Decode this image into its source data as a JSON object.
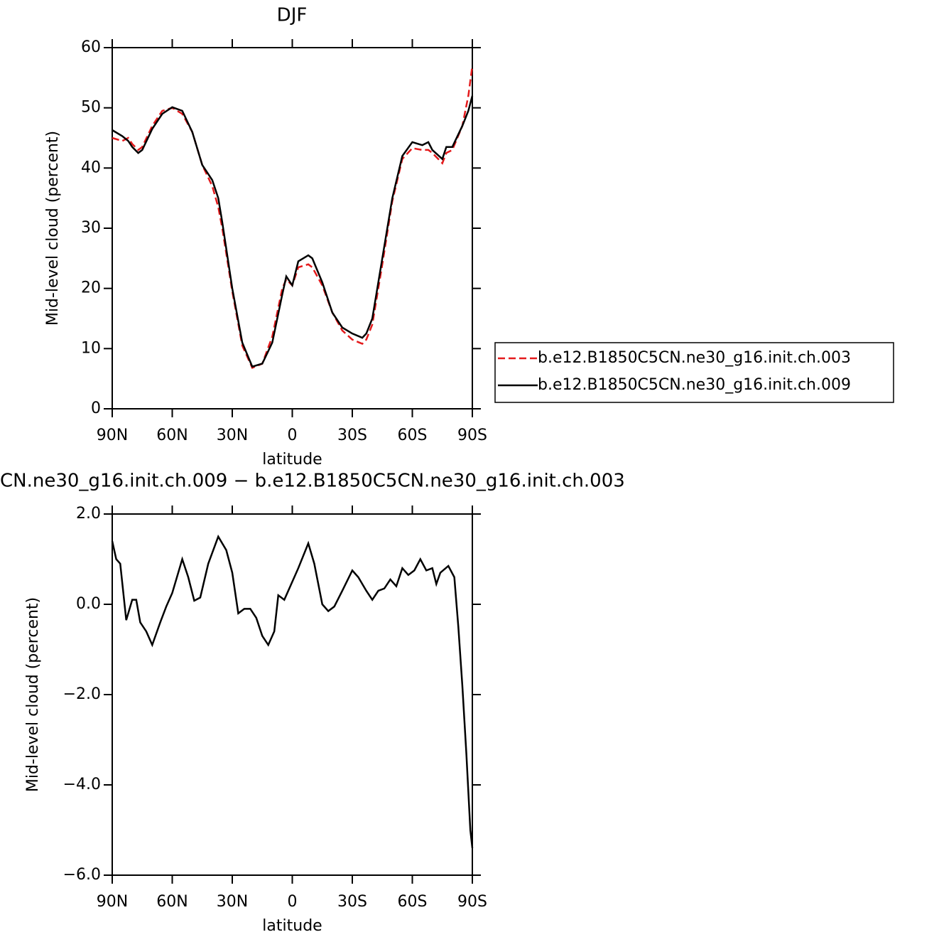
{
  "chart_data": [
    {
      "type": "line",
      "title": "DJF",
      "x_label": "latitude",
      "y_label": "Mid-level cloud (percent)",
      "x": [
        90,
        85,
        82,
        80,
        77,
        75,
        70,
        65,
        60,
        55,
        50,
        45,
        40,
        37,
        35,
        30,
        25,
        20,
        15,
        10,
        5,
        3,
        0,
        -3,
        -8,
        -10,
        -15,
        -20,
        -25,
        -30,
        -35,
        -37,
        -40,
        -45,
        -50,
        -55,
        -60,
        -65,
        -68,
        -70,
        -75,
        -77,
        -80,
        -85,
        -88,
        -90
      ],
      "series": [
        {
          "name": "b.e12.B1850C5CN.ne30_g16.init.ch.003",
          "color": "#e41a1c",
          "dash": true,
          "values": [
            45,
            44.5,
            45,
            44,
            43,
            43.5,
            47,
            49.5,
            50,
            49,
            46,
            40.5,
            37,
            33.5,
            30,
            19.5,
            10.5,
            6.8,
            7.5,
            12,
            20,
            21.5,
            20.5,
            23.5,
            24,
            23.5,
            20.5,
            16,
            13,
            11.5,
            10.8,
            11.5,
            14,
            24,
            34.5,
            41.5,
            43.3,
            43,
            43,
            42.5,
            40.8,
            42.5,
            43,
            47,
            52,
            57
          ]
        },
        {
          "name": "b.e12.B1850C5CN.ne30_g16.init.ch.009",
          "color": "#000000",
          "dash": false,
          "values": [
            46.3,
            45.3,
            44.5,
            43.5,
            42.5,
            43,
            46.5,
            49,
            50.1,
            49.5,
            46,
            40.5,
            38,
            35,
            31,
            20,
            11,
            7,
            7.5,
            11,
            19,
            22,
            20.5,
            24.5,
            25.5,
            25,
            21,
            16,
            13.5,
            12.5,
            11.8,
            12.5,
            15,
            25,
            35,
            42,
            44.3,
            43.8,
            44.3,
            43,
            41.5,
            43.5,
            43.5,
            47,
            49.5,
            52
          ]
        }
      ],
      "xlim": [
        90,
        -90
      ],
      "xticks": [
        {
          "value": 90,
          "label": "90N"
        },
        {
          "value": 60,
          "label": "60N"
        },
        {
          "value": 30,
          "label": "30N"
        },
        0,
        {
          "value": -30,
          "label": "30S"
        },
        {
          "value": -60,
          "label": "60S"
        },
        {
          "value": -90,
          "label": "90S"
        }
      ],
      "ylim": [
        0,
        60
      ],
      "yticks": [
        0,
        10,
        20,
        30,
        40,
        50,
        60
      ],
      "legend": "right"
    },
    {
      "type": "line",
      "title": "CN.ne30_g16.init.ch.009 − b.e12.B1850C5CN.ne30_g16.init.ch.003",
      "x_label": "latitude",
      "y_label": "Mid-level cloud (percent)",
      "x": [
        90,
        88,
        86,
        83,
        80,
        78,
        76,
        73,
        70,
        66,
        63,
        60,
        57,
        55,
        52,
        49,
        46,
        42,
        37,
        33,
        30,
        27,
        24,
        21,
        18,
        15,
        12,
        9,
        7,
        4,
        1,
        -3,
        -8,
        -11,
        -15,
        -18,
        -21,
        -25,
        -30,
        -33,
        -37,
        -40,
        -43,
        -46,
        -49,
        -52,
        -55,
        -58,
        -61,
        -64,
        -67,
        -70,
        -72,
        -74,
        -78,
        -81,
        -83,
        -85,
        -87,
        -89,
        -90
      ],
      "series": [
        {
          "color": "#000000",
          "dash": false,
          "values": [
            1.4,
            1.0,
            0.9,
            -0.35,
            0.1,
            0.1,
            -0.4,
            -0.6,
            -0.9,
            -0.4,
            -0.05,
            0.25,
            0.7,
            1.0,
            0.6,
            0.08,
            0.15,
            0.9,
            1.5,
            1.2,
            0.7,
            -0.2,
            -0.1,
            -0.1,
            -0.3,
            -0.7,
            -0.9,
            -0.6,
            0.2,
            0.1,
            0.4,
            0.8,
            1.35,
            0.9,
            0.0,
            -0.15,
            -0.05,
            0.3,
            0.75,
            0.6,
            0.3,
            0.1,
            0.3,
            0.35,
            0.55,
            0.4,
            0.8,
            0.65,
            0.75,
            1.0,
            0.75,
            0.8,
            0.45,
            0.7,
            0.85,
            0.6,
            -0.5,
            -1.8,
            -3.3,
            -5.0,
            -5.4
          ]
        }
      ],
      "xlim": [
        90,
        -90
      ],
      "xticks": [
        {
          "value": 90,
          "label": "90N"
        },
        {
          "value": 60,
          "label": "60N"
        },
        {
          "value": 30,
          "label": "30N"
        },
        0,
        {
          "value": -30,
          "label": "30S"
        },
        {
          "value": -60,
          "label": "60S"
        },
        {
          "value": -90,
          "label": "90S"
        }
      ],
      "ylim": [
        -6,
        2
      ],
      "yticks": [
        {
          "value": 2,
          "label": "2.0"
        },
        {
          "value": 0,
          "label": "0.0"
        },
        {
          "value": -2,
          "label": "−2.0"
        },
        {
          "value": -4,
          "label": "−4.0"
        },
        {
          "value": -6,
          "label": "−6.0"
        }
      ]
    }
  ]
}
